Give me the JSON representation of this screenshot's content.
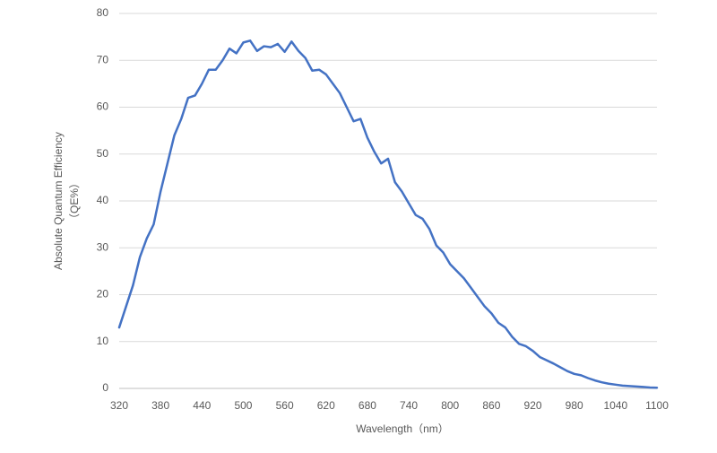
{
  "chart_data": {
    "type": "line",
    "xlabel": "Wavelength（nm）",
    "ylabel": [
      "Absolute Quantum Efficiency",
      "（QE%）"
    ],
    "x": [
      320,
      330,
      340,
      350,
      360,
      370,
      380,
      390,
      400,
      410,
      420,
      430,
      440,
      450,
      460,
      470,
      480,
      490,
      500,
      510,
      520,
      530,
      540,
      550,
      560,
      570,
      580,
      590,
      600,
      610,
      620,
      630,
      640,
      650,
      660,
      670,
      680,
      690,
      700,
      710,
      720,
      730,
      740,
      750,
      760,
      770,
      780,
      790,
      800,
      810,
      820,
      830,
      840,
      850,
      860,
      870,
      880,
      890,
      900,
      910,
      920,
      930,
      940,
      950,
      960,
      970,
      980,
      990,
      1000,
      1010,
      1020,
      1030,
      1040,
      1050,
      1060,
      1070,
      1080,
      1090,
      1100
    ],
    "series": [
      {
        "name": "QE",
        "color": "#4472c4",
        "values": [
          13,
          17.5,
          22,
          28,
          32,
          35,
          42,
          48,
          54,
          57.5,
          62,
          62.5,
          65,
          68,
          68,
          70,
          72.5,
          71.5,
          73.8,
          74.2,
          72,
          73,
          72.8,
          73.5,
          71.8,
          74,
          72,
          70.5,
          67.8,
          68,
          67,
          65,
          63,
          60,
          57,
          57.5,
          53.5,
          50.5,
          48,
          49,
          44,
          42,
          39.5,
          37,
          36.2,
          34,
          30.5,
          29,
          26.5,
          25,
          23.5,
          21.5,
          19.5,
          17.5,
          16,
          14,
          13,
          11,
          9.5,
          9,
          8,
          6.7,
          6,
          5.3,
          4.5,
          3.7,
          3.1,
          2.8,
          2.2,
          1.7,
          1.3,
          1.0,
          0.8,
          0.6,
          0.5,
          0.4,
          0.3,
          0.2,
          0.15
        ]
      }
    ],
    "xlim": [
      320,
      1100
    ],
    "xticks": [
      320,
      380,
      440,
      500,
      560,
      620,
      680,
      740,
      800,
      860,
      920,
      980,
      1040,
      1100
    ],
    "ylim": [
      0,
      80
    ],
    "yticks": [
      0,
      10,
      20,
      30,
      40,
      50,
      60,
      70,
      80
    ],
    "grid": true
  }
}
